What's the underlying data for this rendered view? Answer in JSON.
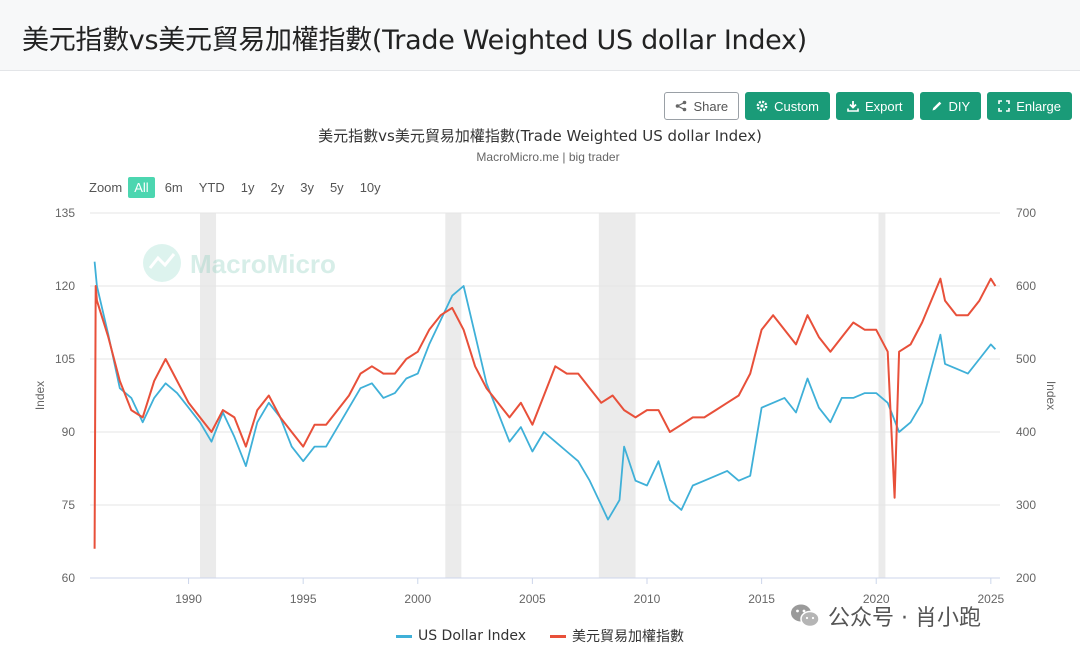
{
  "header": {
    "title": "美元指數vs美元貿易加權指數(Trade Weighted US dollar Index)"
  },
  "toolbar": [
    {
      "label": "Share",
      "icon": "share-icon",
      "style": "outline"
    },
    {
      "label": "Custom",
      "icon": "gear-icon",
      "style": "green"
    },
    {
      "label": "Export",
      "icon": "download-icon",
      "style": "green"
    },
    {
      "label": "DIY",
      "icon": "pencil-icon",
      "style": "green"
    },
    {
      "label": "Enlarge",
      "icon": "expand-icon",
      "style": "green"
    }
  ],
  "zoom": {
    "label": "Zoom",
    "options": [
      "All",
      "6m",
      "YTD",
      "1y",
      "2y",
      "3y",
      "5y",
      "10y"
    ],
    "active": "All"
  },
  "watermark": "MacroMicro",
  "footer_watermark": "公众号 · 肖小跑",
  "colors": {
    "usd": "#3fb0d8",
    "twi": "#e8503a",
    "accent": "#1a9b78",
    "recession": "#ebebeb"
  },
  "chart_data": {
    "type": "line",
    "title": "美元指數vs美元貿易加權指數(Trade Weighted US dollar Index)",
    "subtitle": "MacroMicro.me | big trader",
    "xlabel": "",
    "xlim": [
      1985.7,
      2025.4
    ],
    "xticks": [
      1990,
      1995,
      2000,
      2005,
      2010,
      2015,
      2020,
      2025
    ],
    "y_left": {
      "label": "Index",
      "lim": [
        60,
        135
      ],
      "ticks": [
        60,
        75,
        90,
        105,
        120,
        135
      ]
    },
    "y_right": {
      "label": "Index",
      "lim": [
        200,
        700
      ],
      "ticks": [
        200,
        300,
        400,
        500,
        600,
        700
      ]
    },
    "grid": true,
    "legend": "bottom-center",
    "recession_bands": [
      [
        1990.5,
        1991.2
      ],
      [
        2001.2,
        2001.9
      ],
      [
        2007.9,
        2009.5
      ],
      [
        2020.1,
        2020.4
      ]
    ],
    "series": [
      {
        "name": "US Dollar Index",
        "axis": "left",
        "x": [
          1985.9,
          1986.0,
          1986.5,
          1987.0,
          1987.5,
          1988.0,
          1988.5,
          1989.0,
          1989.5,
          1990.0,
          1990.5,
          1991.0,
          1991.5,
          1992.0,
          1992.5,
          1993.0,
          1993.5,
          1994.0,
          1994.5,
          1995.0,
          1995.5,
          1996.0,
          1996.5,
          1997.0,
          1997.5,
          1998.0,
          1998.5,
          1999.0,
          1999.5,
          2000.0,
          2000.5,
          2001.0,
          2001.5,
          2002.0,
          2002.5,
          2003.0,
          2003.5,
          2004.0,
          2004.5,
          2005.0,
          2005.5,
          2006.0,
          2006.5,
          2007.0,
          2007.5,
          2008.0,
          2008.3,
          2008.8,
          2009.0,
          2009.5,
          2010.0,
          2010.5,
          2011.0,
          2011.5,
          2012.0,
          2012.5,
          2013.0,
          2013.5,
          2014.0,
          2014.5,
          2015.0,
          2015.5,
          2016.0,
          2016.5,
          2017.0,
          2017.5,
          2018.0,
          2018.5,
          2019.0,
          2019.5,
          2020.0,
          2020.5,
          2021.0,
          2021.5,
          2022.0,
          2022.8,
          2023.0,
          2023.5,
          2024.0,
          2024.5,
          2025.0,
          2025.2
        ],
        "y": [
          125,
          120,
          110,
          99,
          97,
          92,
          97,
          100,
          98,
          95,
          92,
          88,
          94,
          89,
          83,
          92,
          96,
          93,
          87,
          84,
          87,
          87,
          91,
          95,
          99,
          100,
          97,
          98,
          101,
          102,
          108,
          113,
          118,
          120,
          110,
          100,
          94,
          88,
          91,
          86,
          90,
          88,
          86,
          84,
          80,
          75,
          72,
          76,
          87,
          80,
          79,
          84,
          76,
          74,
          79,
          80,
          81,
          82,
          80,
          81,
          95,
          96,
          97,
          94,
          101,
          95,
          92,
          97,
          97,
          98,
          98,
          96,
          90,
          92,
          96,
          110,
          104,
          103,
          102,
          105,
          108,
          107
        ]
      },
      {
        "name": "美元貿易加權指數",
        "axis": "right",
        "x": [
          1985.9,
          1985.95,
          1986.0,
          1986.5,
          1987.0,
          1987.5,
          1988.0,
          1988.5,
          1989.0,
          1989.5,
          1990.0,
          1990.5,
          1991.0,
          1991.5,
          1992.0,
          1992.5,
          1993.0,
          1993.5,
          1994.0,
          1994.5,
          1995.0,
          1995.5,
          1996.0,
          1996.5,
          1997.0,
          1997.5,
          1998.0,
          1998.5,
          1999.0,
          1999.5,
          2000.0,
          2000.5,
          2001.0,
          2001.5,
          2002.0,
          2002.5,
          2003.0,
          2003.5,
          2004.0,
          2004.5,
          2005.0,
          2005.5,
          2006.0,
          2006.5,
          2007.0,
          2007.5,
          2008.0,
          2008.5,
          2009.0,
          2009.5,
          2010.0,
          2010.5,
          2011.0,
          2011.5,
          2012.0,
          2012.5,
          2013.0,
          2013.5,
          2014.0,
          2014.5,
          2015.0,
          2015.5,
          2016.0,
          2016.5,
          2017.0,
          2017.5,
          2018.0,
          2018.5,
          2019.0,
          2019.5,
          2020.0,
          2020.5,
          2020.8,
          2021.0,
          2021.5,
          2022.0,
          2022.8,
          2023.0,
          2023.5,
          2024.0,
          2024.5,
          2025.0,
          2025.2
        ],
        "y": [
          240,
          600,
          580,
          530,
          470,
          430,
          420,
          470,
          500,
          470,
          440,
          420,
          400,
          430,
          420,
          380,
          430,
          450,
          420,
          400,
          380,
          410,
          410,
          430,
          450,
          480,
          490,
          480,
          480,
          500,
          510,
          540,
          560,
          570,
          540,
          490,
          460,
          440,
          420,
          440,
          410,
          450,
          490,
          480,
          480,
          460,
          440,
          450,
          430,
          420,
          430,
          430,
          400,
          410,
          420,
          420,
          430,
          440,
          450,
          480,
          540,
          560,
          540,
          520,
          560,
          530,
          510,
          530,
          550,
          540,
          540,
          510,
          310,
          510,
          520,
          550,
          610,
          580,
          560,
          560,
          580,
          610,
          600
        ]
      }
    ]
  }
}
